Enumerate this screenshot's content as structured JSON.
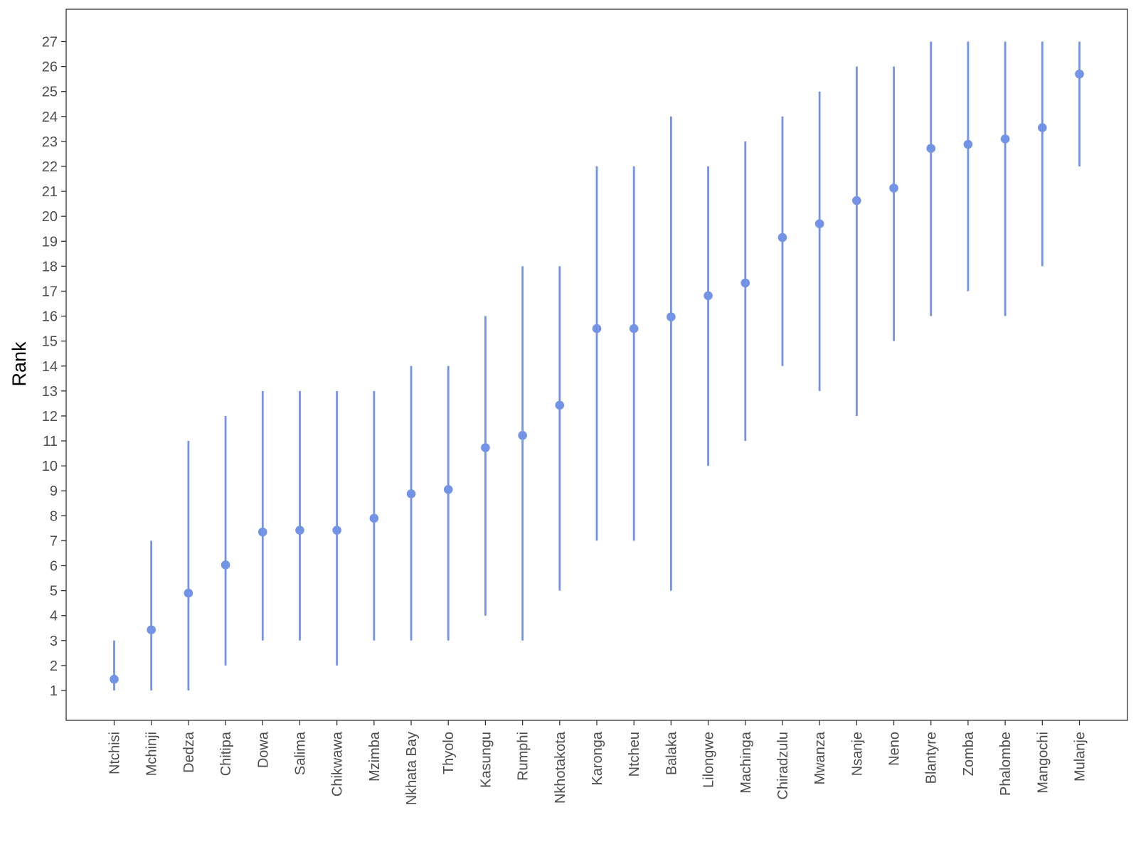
{
  "chart_data": {
    "type": "scatter",
    "ylabel": "Rank",
    "xlabel": "",
    "ylim": [
      -0.25,
      28.2
    ],
    "yticks": [
      1,
      2,
      3,
      4,
      5,
      6,
      7,
      8,
      9,
      10,
      11,
      12,
      13,
      14,
      15,
      16,
      17,
      18,
      19,
      20,
      21,
      22,
      23,
      24,
      25,
      26,
      27
    ],
    "grid": false,
    "legend": "none",
    "colors": {
      "point": "#7393e6",
      "interval": "#7393e6",
      "axis": "#333333",
      "tick_label": "#4d4d4d"
    },
    "categories": [
      "Ntchisi",
      "Mchinji",
      "Dedza",
      "Chitipa",
      "Dowa",
      "Salima",
      "Chikwawa",
      "Mzimba",
      "Nkhata Bay",
      "Thyolo",
      "Kasungu",
      "Rumphi",
      "Nkhotakota",
      "Karonga",
      "Ntcheu",
      "Balaka",
      "Lilongwe",
      "Machinga",
      "Chiradzulu",
      "Mwanza",
      "Nsanje",
      "Neno",
      "Blantyre",
      "Zomba",
      "Phalombe",
      "Mangochi",
      "Mulanje"
    ],
    "series": [
      {
        "values": [
          1.45,
          3.43,
          4.9,
          6.03,
          7.35,
          7.42,
          7.42,
          7.9,
          8.88,
          9.05,
          10.73,
          11.22,
          12.43,
          15.5,
          15.5,
          15.97,
          16.82,
          17.33,
          19.15,
          19.7,
          20.63,
          21.13,
          22.72,
          22.88,
          23.1,
          23.55,
          25.7
        ],
        "lower": [
          1,
          1,
          1,
          2,
          3,
          3,
          2,
          3,
          3,
          3,
          4,
          3,
          5,
          7,
          7,
          5,
          10,
          11,
          14,
          13,
          12,
          15,
          16,
          17,
          16,
          18,
          22
        ],
        "upper": [
          3,
          7,
          11,
          12,
          13,
          13,
          13,
          13,
          14,
          14,
          16,
          18,
          18,
          22,
          22,
          24,
          22,
          23,
          24,
          25,
          26,
          26,
          27,
          27,
          27,
          27,
          27
        ]
      }
    ]
  }
}
